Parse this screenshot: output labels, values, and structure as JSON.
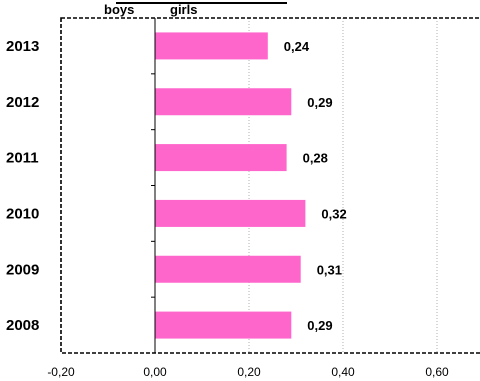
{
  "chart_data": {
    "type": "bar",
    "orientation": "horizontal",
    "categories": [
      "2013",
      "2012",
      "2011",
      "2010",
      "2009",
      "2008"
    ],
    "series": [
      {
        "name": "girls",
        "values": [
          0.24,
          0.29,
          0.28,
          0.32,
          0.31,
          0.29
        ],
        "color": "#ff66cc"
      }
    ],
    "data_labels": [
      "0,24",
      "0,29",
      "0,28",
      "0,32",
      "0,31",
      "0,29"
    ],
    "header_labels": [
      "boys",
      "girls"
    ],
    "xticks": [
      -0.2,
      0.0,
      0.2,
      0.4,
      0.6
    ],
    "xtick_labels": [
      "-0,20",
      "0,00",
      "0,20",
      "0,40",
      "0,60"
    ],
    "xlim": [
      -0.2,
      0.7
    ],
    "grid": "vertical dotted",
    "title": "",
    "xlabel": "",
    "ylabel": ""
  }
}
